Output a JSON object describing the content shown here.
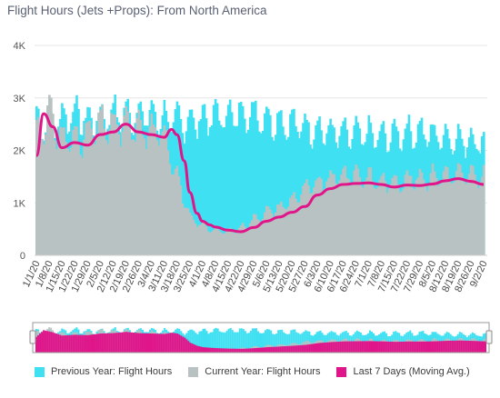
{
  "chart_data": {
    "type": "area",
    "title": "Flight Hours (Jets +Props): From North America",
    "y_ticks": [
      "0",
      "1K",
      "2K",
      "3K",
      "4K"
    ],
    "ylim": [
      0,
      4000
    ],
    "grid": true,
    "legend_position": "bottom",
    "x_tick_labels": [
      "1/1/20",
      "1/8/20",
      "1/15/20",
      "1/22/20",
      "1/29/20",
      "2/5/20",
      "2/12/20",
      "2/19/20",
      "2/26/20",
      "3/4/20",
      "3/11/20",
      "3/18/20",
      "3/25/20",
      "4/1/20",
      "4/8/20",
      "4/15/20",
      "4/22/20",
      "4/29/20",
      "5/6/20",
      "5/13/20",
      "5/20/20",
      "5/27/20",
      "6/3/20",
      "6/10/20",
      "6/17/20",
      "6/24/20",
      "7/1/20",
      "7/8/20",
      "7/15/20",
      "7/22/20",
      "7/29/20",
      "8/5/20",
      "8/12/20",
      "8/19/20",
      "8/26/20",
      "9/2/20"
    ],
    "x_start": "1/1/20",
    "series": [
      {
        "name": "Previous Year: Flight Hours",
        "color": "#3fe0f2",
        "style": "daily-bars",
        "weekly_values": [
          2550,
          2450,
          2600,
          2700,
          2550,
          2600,
          2700,
          2650,
          2700,
          2650,
          2600,
          2550,
          2550,
          2600,
          2650,
          2650,
          2700,
          2700,
          2600,
          2550,
          2500,
          2450,
          2400,
          2350,
          2300,
          2300,
          2300,
          2250,
          2300,
          2350,
          2350,
          2300,
          2250,
          2200,
          2200,
          2150
        ],
        "value_range": [
          1700,
          3250
        ]
      },
      {
        "name": "Current Year: Flight Hours",
        "color": "#b9c2c2",
        "style": "daily-bars",
        "weekly_values": [
          2300,
          2700,
          2200,
          2200,
          2300,
          2500,
          2450,
          2450,
          2400,
          2350,
          2300,
          1500,
          700,
          560,
          470,
          450,
          520,
          680,
          820,
          900,
          1050,
          1250,
          1350,
          1450,
          1520,
          1530,
          1470,
          1380,
          1400,
          1420,
          1470,
          1500,
          1520,
          1530,
          1510,
          1480
        ]
      },
      {
        "name": "Last 7 Days (Moving Avg.)",
        "color": "#e0158a",
        "style": "line",
        "x": [
          "1/1/20",
          "1/5/20",
          "1/10/20",
          "1/15/20",
          "1/22/20",
          "1/29/20",
          "2/5/20",
          "2/12/20",
          "2/19/20",
          "2/26/20",
          "3/4/20",
          "3/11/20",
          "3/15/20",
          "3/18/20",
          "3/22/20",
          "3/25/20",
          "3/29/20",
          "4/1/20",
          "4/5/20",
          "4/8/20",
          "4/15/20",
          "4/22/20",
          "4/29/20",
          "5/6/20",
          "5/13/20",
          "5/20/20",
          "5/27/20",
          "6/3/20",
          "6/10/20",
          "6/17/20",
          "6/24/20",
          "7/1/20",
          "7/8/20",
          "7/15/20",
          "7/22/20",
          "7/29/20",
          "8/5/20",
          "8/12/20",
          "8/19/20",
          "8/26/20",
          "9/2/20"
        ],
        "values": [
          1900,
          2700,
          2450,
          2050,
          2150,
          2100,
          2300,
          2350,
          2500,
          2350,
          2300,
          2250,
          2400,
          2300,
          1800,
          1200,
          800,
          650,
          580,
          540,
          480,
          450,
          530,
          650,
          730,
          820,
          930,
          1150,
          1270,
          1350,
          1370,
          1380,
          1350,
          1300,
          1340,
          1330,
          1360,
          1420,
          1460,
          1410,
          1350
        ]
      }
    ]
  }
}
